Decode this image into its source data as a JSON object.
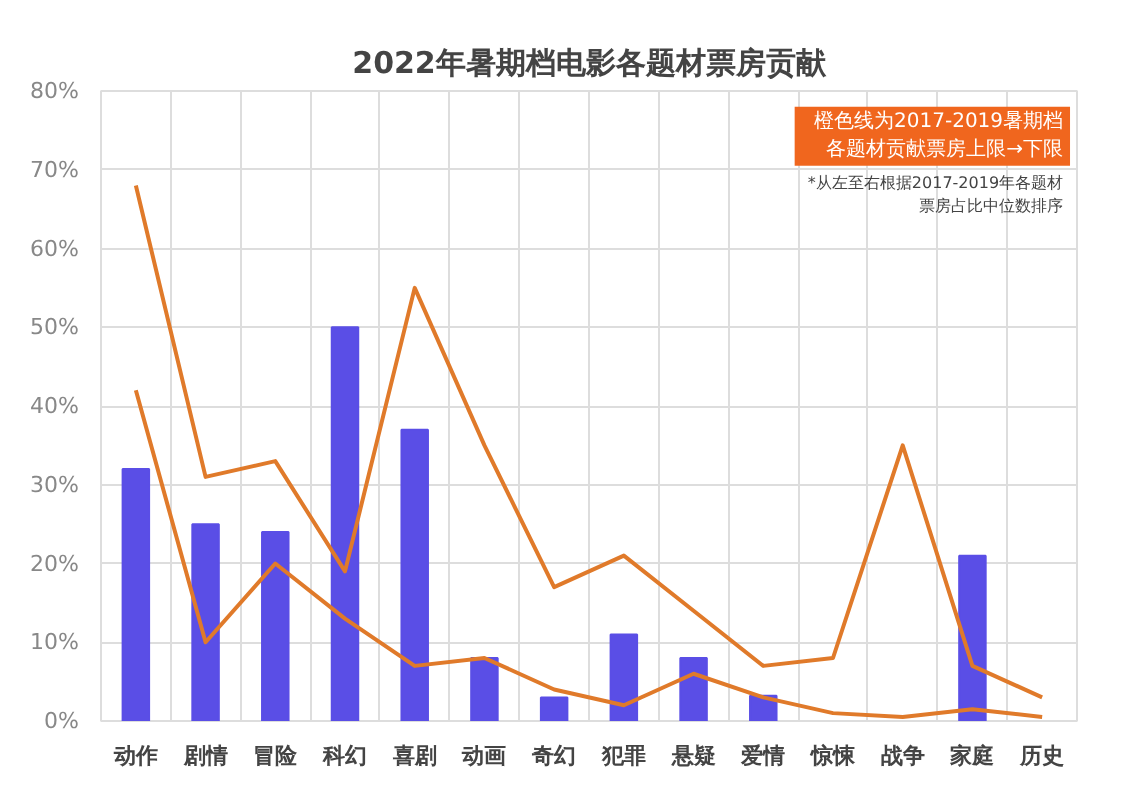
{
  "chart_data": {
    "type": "bar",
    "title": "2022年暑期档电影各题材票房贡献",
    "categories": [
      "动作",
      "剧情",
      "冒险",
      "科幻",
      "喜剧",
      "动画",
      "奇幻",
      "犯罪",
      "悬疑",
      "爱情",
      "惊悚",
      "战争",
      "家庭",
      "历史"
    ],
    "series": [
      {
        "color": "#5a4ee6",
        "values": [
          32,
          25,
          24,
          50,
          37,
          8,
          3,
          11,
          8,
          3.2,
          null,
          null,
          21,
          null
        ]
      },
      {
        "type": "line",
        "color": "#e07a2a",
        "values": [
          68,
          31,
          33,
          19,
          55,
          35,
          17,
          21,
          14,
          7,
          8,
          35,
          7,
          3
        ]
      },
      {
        "type": "line",
        "color": "#e07a2a",
        "values": [
          42,
          10,
          20,
          13,
          7,
          8,
          4,
          2,
          6,
          3,
          1,
          0.5,
          1.5,
          0.5
        ]
      }
    ],
    "ylim": [
      0,
      80
    ],
    "yticks": [
      {
        "value": 0,
        "label": "0%"
      },
      {
        "value": 10,
        "label": "10%"
      },
      {
        "value": 20,
        "label": "20%"
      },
      {
        "value": 30,
        "label": "30%"
      },
      {
        "value": 40,
        "label": "40%"
      },
      {
        "value": 50,
        "label": "50%"
      },
      {
        "value": 60,
        "label": "60%"
      },
      {
        "value": 70,
        "label": "70%"
      },
      {
        "value": 80,
        "label": "80%"
      }
    ],
    "grid": true,
    "annotations": [
      "橙色线为2017-2019暑期档",
      "各题材贡献票房上限→下限",
      "*从左至右根据2017-2019年各题材",
      "票房占比中位数排序"
    ]
  }
}
